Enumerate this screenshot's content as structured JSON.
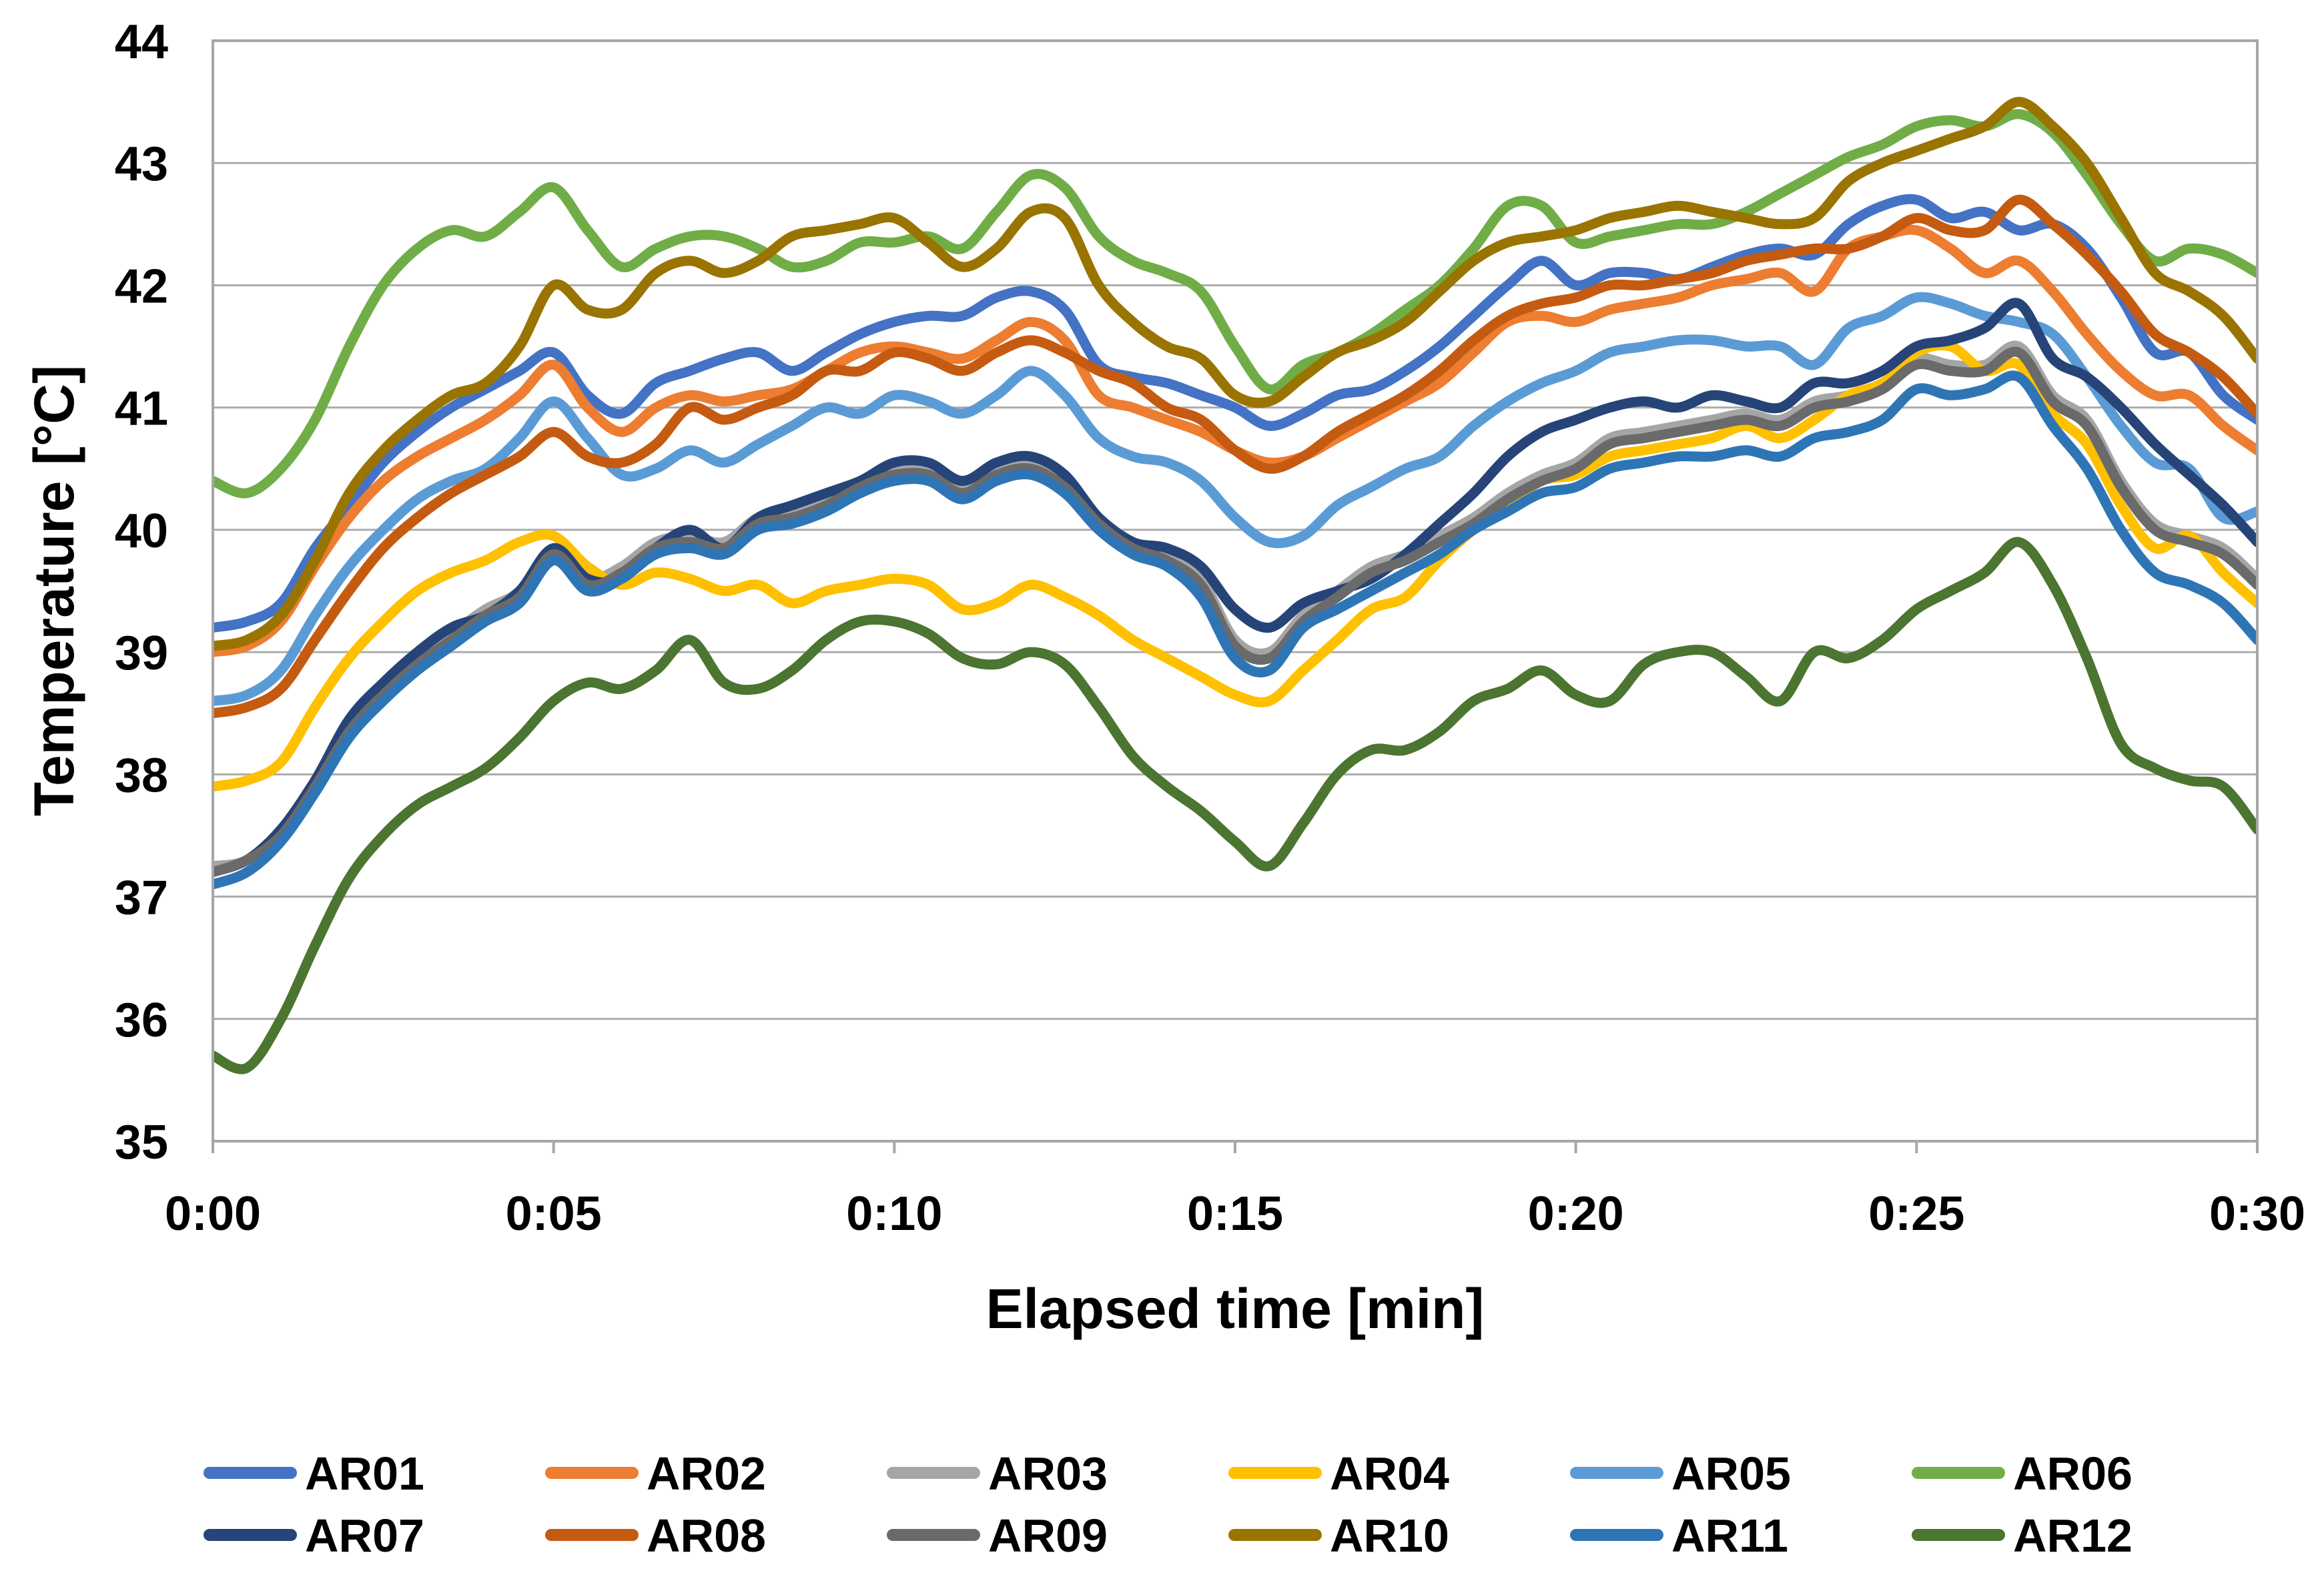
{
  "chart_data": {
    "type": "line",
    "title": "",
    "xlabel": "Elapsed time [min]",
    "ylabel": "Temperature [°C]",
    "xlim": [
      0,
      30
    ],
    "ylim": [
      35,
      44
    ],
    "grid": "horizontal-only",
    "legend_position": "bottom",
    "y_ticks": [
      35,
      36,
      37,
      38,
      39,
      40,
      41,
      42,
      43,
      44
    ],
    "x_ticks": [
      {
        "t": 0,
        "label": "0:00"
      },
      {
        "t": 5,
        "label": "0:05"
      },
      {
        "t": 10,
        "label": "0:10"
      },
      {
        "t": 15,
        "label": "0:15"
      },
      {
        "t": 20,
        "label": "0:20"
      },
      {
        "t": 25,
        "label": "0:25"
      },
      {
        "t": 30,
        "label": "0:30"
      }
    ],
    "sample_interval_min": 0.5,
    "series": [
      {
        "name": "AR01",
        "color": "#4472C4",
        "values": [
          39.2,
          39.25,
          39.4,
          39.85,
          40.2,
          40.55,
          40.8,
          41.0,
          41.15,
          41.3,
          41.45,
          41.1,
          40.95,
          41.2,
          41.3,
          41.4,
          41.45,
          41.3,
          41.45,
          41.6,
          41.7,
          41.75,
          41.75,
          41.9,
          41.95,
          41.8,
          41.35,
          41.25,
          41.2,
          41.1,
          41.0,
          40.85,
          40.95,
          41.1,
          41.15,
          41.3,
          41.5,
          41.75,
          42.0,
          42.2,
          42.0,
          42.1,
          42.1,
          42.05,
          42.15,
          42.25,
          42.3,
          42.25,
          42.5,
          42.65,
          42.7,
          42.55,
          42.6,
          42.45,
          42.5,
          42.3,
          41.9,
          41.45,
          41.45,
          41.1,
          40.9
        ]
      },
      {
        "name": "AR02",
        "color": "#ED7D31",
        "values": [
          39.0,
          39.05,
          39.25,
          39.7,
          40.1,
          40.4,
          40.6,
          40.75,
          40.9,
          41.1,
          41.35,
          41.0,
          40.8,
          41.0,
          41.1,
          41.05,
          41.1,
          41.15,
          41.3,
          41.45,
          41.5,
          41.45,
          41.4,
          41.55,
          41.7,
          41.55,
          41.1,
          41.0,
          40.9,
          40.8,
          40.65,
          40.55,
          40.6,
          40.75,
          40.9,
          41.05,
          41.2,
          41.45,
          41.7,
          41.75,
          41.7,
          41.8,
          41.85,
          41.9,
          42.0,
          42.05,
          42.1,
          41.95,
          42.3,
          42.4,
          42.45,
          42.3,
          42.1,
          42.2,
          41.95,
          41.6,
          41.3,
          41.1,
          41.1,
          40.85,
          40.65
        ]
      },
      {
        "name": "AR03",
        "color": "#A5A5A5",
        "values": [
          37.25,
          37.3,
          37.55,
          37.95,
          38.4,
          38.7,
          38.95,
          39.15,
          39.35,
          39.5,
          39.85,
          39.6,
          39.7,
          39.9,
          39.95,
          39.9,
          40.1,
          40.15,
          40.25,
          40.4,
          40.5,
          40.5,
          40.35,
          40.5,
          40.55,
          40.4,
          40.1,
          39.9,
          39.8,
          39.6,
          39.1,
          39.0,
          39.3,
          39.5,
          39.7,
          39.8,
          39.95,
          40.1,
          40.3,
          40.45,
          40.55,
          40.75,
          40.8,
          40.85,
          40.9,
          40.95,
          40.9,
          41.05,
          41.1,
          41.2,
          41.4,
          41.35,
          41.35,
          41.5,
          41.1,
          40.9,
          40.4,
          40.05,
          39.95,
          39.85,
          39.6
        ]
      },
      {
        "name": "AR04",
        "color": "#FFC000",
        "values": [
          37.9,
          37.95,
          38.1,
          38.55,
          38.95,
          39.25,
          39.5,
          39.65,
          39.75,
          39.9,
          39.95,
          39.7,
          39.55,
          39.65,
          39.6,
          39.5,
          39.55,
          39.4,
          39.5,
          39.55,
          39.6,
          39.55,
          39.35,
          39.4,
          39.55,
          39.45,
          39.3,
          39.1,
          38.95,
          38.8,
          38.65,
          38.6,
          38.85,
          39.1,
          39.35,
          39.45,
          39.75,
          40.0,
          40.2,
          40.4,
          40.45,
          40.6,
          40.65,
          40.7,
          40.75,
          40.85,
          40.75,
          40.9,
          41.1,
          41.2,
          41.45,
          41.5,
          41.3,
          41.35,
          40.95,
          40.7,
          40.2,
          39.85,
          39.95,
          39.65,
          39.4
        ]
      },
      {
        "name": "AR05",
        "color": "#5B9BD5",
        "values": [
          38.6,
          38.65,
          38.85,
          39.3,
          39.7,
          40.0,
          40.25,
          40.4,
          40.5,
          40.75,
          41.05,
          40.75,
          40.45,
          40.5,
          40.65,
          40.55,
          40.7,
          40.85,
          41.0,
          40.95,
          41.1,
          41.05,
          40.95,
          41.1,
          41.3,
          41.1,
          40.75,
          40.6,
          40.55,
          40.4,
          40.1,
          39.9,
          39.95,
          40.2,
          40.35,
          40.5,
          40.6,
          40.85,
          41.05,
          41.2,
          41.3,
          41.45,
          41.5,
          41.55,
          41.55,
          41.5,
          41.5,
          41.35,
          41.65,
          41.75,
          41.9,
          41.85,
          41.75,
          41.7,
          41.6,
          41.25,
          40.85,
          40.55,
          40.5,
          40.1,
          40.15
        ]
      },
      {
        "name": "AR06",
        "color": "#70AD47",
        "values": [
          40.4,
          40.3,
          40.5,
          40.9,
          41.5,
          42.0,
          42.3,
          42.45,
          42.4,
          42.6,
          42.8,
          42.45,
          42.15,
          42.3,
          42.4,
          42.4,
          42.3,
          42.15,
          42.2,
          42.35,
          42.35,
          42.4,
          42.3,
          42.6,
          42.9,
          42.8,
          42.4,
          42.2,
          42.1,
          41.95,
          41.5,
          41.15,
          41.35,
          41.45,
          41.6,
          41.8,
          42.0,
          42.3,
          42.65,
          42.65,
          42.35,
          42.4,
          42.45,
          42.5,
          42.5,
          42.6,
          42.75,
          42.9,
          43.05,
          43.15,
          43.3,
          43.35,
          43.3,
          43.4,
          43.25,
          42.9,
          42.5,
          42.2,
          42.3,
          42.25,
          42.1
        ]
      },
      {
        "name": "AR07",
        "color": "#264478",
        "values": [
          37.2,
          37.3,
          37.55,
          37.95,
          38.45,
          38.75,
          39.0,
          39.2,
          39.3,
          39.5,
          39.85,
          39.6,
          39.6,
          39.85,
          40.0,
          39.85,
          40.1,
          40.2,
          40.3,
          40.4,
          40.55,
          40.55,
          40.4,
          40.55,
          40.6,
          40.45,
          40.1,
          39.9,
          39.85,
          39.7,
          39.35,
          39.2,
          39.4,
          39.5,
          39.6,
          39.8,
          40.05,
          40.3,
          40.6,
          40.8,
          40.9,
          41.0,
          41.05,
          41.0,
          41.1,
          41.05,
          41.0,
          41.2,
          41.2,
          41.3,
          41.5,
          41.55,
          41.65,
          41.85,
          41.4,
          41.25,
          41.0,
          40.7,
          40.45,
          40.2,
          39.9
        ]
      },
      {
        "name": "AR08",
        "color": "#C55A11",
        "values": [
          38.5,
          38.55,
          38.7,
          39.1,
          39.5,
          39.85,
          40.1,
          40.3,
          40.45,
          40.6,
          40.8,
          40.6,
          40.55,
          40.7,
          41.0,
          40.9,
          41.0,
          41.1,
          41.3,
          41.3,
          41.45,
          41.4,
          41.3,
          41.45,
          41.55,
          41.45,
          41.3,
          41.2,
          41.0,
          40.9,
          40.65,
          40.5,
          40.6,
          40.8,
          40.95,
          41.1,
          41.3,
          41.55,
          41.75,
          41.85,
          41.9,
          42.0,
          42.0,
          42.05,
          42.1,
          42.2,
          42.25,
          42.3,
          42.3,
          42.4,
          42.55,
          42.45,
          42.45,
          42.7,
          42.5,
          42.25,
          41.95,
          41.6,
          41.45,
          41.25,
          40.95
        ]
      },
      {
        "name": "AR09",
        "color": "#6A6A6A",
        "values": [
          37.2,
          37.3,
          37.5,
          37.9,
          38.35,
          38.65,
          38.9,
          39.1,
          39.3,
          39.45,
          39.8,
          39.55,
          39.65,
          39.85,
          39.9,
          39.85,
          40.05,
          40.1,
          40.2,
          40.35,
          40.45,
          40.45,
          40.3,
          40.45,
          40.5,
          40.35,
          40.05,
          39.85,
          39.75,
          39.55,
          39.05,
          38.95,
          39.25,
          39.45,
          39.65,
          39.75,
          39.9,
          40.05,
          40.25,
          40.4,
          40.5,
          40.7,
          40.75,
          40.8,
          40.85,
          40.9,
          40.85,
          41.0,
          41.05,
          41.15,
          41.35,
          41.3,
          41.3,
          41.45,
          41.05,
          40.85,
          40.35,
          40.0,
          39.9,
          39.8,
          39.55
        ]
      },
      {
        "name": "AR10",
        "color": "#9A7400",
        "values": [
          39.05,
          39.1,
          39.3,
          39.75,
          40.3,
          40.65,
          40.9,
          41.1,
          41.2,
          41.5,
          42.0,
          41.8,
          41.8,
          42.1,
          42.2,
          42.1,
          42.2,
          42.4,
          42.45,
          42.5,
          42.55,
          42.35,
          42.15,
          42.3,
          42.6,
          42.55,
          42.0,
          41.7,
          41.5,
          41.4,
          41.1,
          41.05,
          41.25,
          41.45,
          41.55,
          41.7,
          41.95,
          42.2,
          42.35,
          42.4,
          42.45,
          42.55,
          42.6,
          42.65,
          42.6,
          42.55,
          42.5,
          42.55,
          42.85,
          43.0,
          43.1,
          43.2,
          43.3,
          43.5,
          43.3,
          43.0,
          42.55,
          42.1,
          41.95,
          41.75,
          41.4
        ]
      },
      {
        "name": "AR11",
        "color": "#2E75B6",
        "values": [
          37.1,
          37.2,
          37.45,
          37.85,
          38.3,
          38.6,
          38.85,
          39.05,
          39.25,
          39.4,
          39.75,
          39.5,
          39.6,
          39.8,
          39.85,
          39.8,
          40.0,
          40.05,
          40.15,
          40.3,
          40.4,
          40.4,
          40.25,
          40.4,
          40.45,
          40.3,
          40.0,
          39.8,
          39.7,
          39.45,
          38.95,
          38.85,
          39.2,
          39.35,
          39.5,
          39.65,
          39.8,
          40.0,
          40.15,
          40.3,
          40.35,
          40.5,
          40.55,
          40.6,
          40.6,
          40.65,
          40.6,
          40.75,
          40.8,
          40.9,
          41.15,
          41.1,
          41.15,
          41.25,
          40.85,
          40.5,
          40.0,
          39.65,
          39.55,
          39.4,
          39.1
        ]
      },
      {
        "name": "AR12",
        "color": "#4B7530",
        "values": [
          35.7,
          35.6,
          36.0,
          36.6,
          37.15,
          37.5,
          37.75,
          37.9,
          38.05,
          38.3,
          38.6,
          38.75,
          38.7,
          38.85,
          39.1,
          38.75,
          38.7,
          38.85,
          39.1,
          39.25,
          39.25,
          39.15,
          38.95,
          38.9,
          39.0,
          38.9,
          38.55,
          38.15,
          37.9,
          37.7,
          37.45,
          37.25,
          37.6,
          38.0,
          38.2,
          38.2,
          38.35,
          38.6,
          38.7,
          38.85,
          38.65,
          38.6,
          38.9,
          39.0,
          39.0,
          38.8,
          38.6,
          39.0,
          38.95,
          39.1,
          39.35,
          39.5,
          39.65,
          39.9,
          39.55,
          38.95,
          38.25,
          38.05,
          37.95,
          37.9,
          37.55
        ]
      }
    ]
  },
  "style": {
    "gridline_color": "#ACACAC",
    "border_color": "#A6A6A6",
    "text_color": "#000000",
    "line_width": 15
  }
}
